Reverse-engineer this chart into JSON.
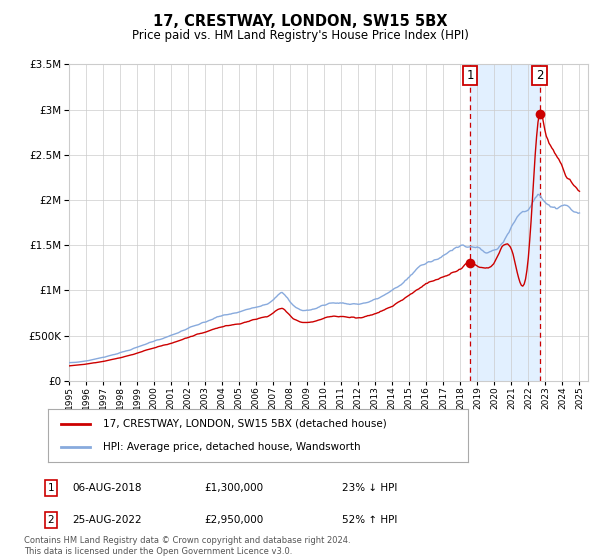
{
  "title": "17, CRESTWAY, LONDON, SW15 5BX",
  "subtitle": "Price paid vs. HM Land Registry's House Price Index (HPI)",
  "legend_label_red": "17, CRESTWAY, LONDON, SW15 5BX (detached house)",
  "legend_label_blue": "HPI: Average price, detached house, Wandsworth",
  "annotation1_label": "1",
  "annotation1_date": "06-AUG-2018",
  "annotation1_price": "£1,300,000",
  "annotation1_hpi": "23% ↓ HPI",
  "annotation1_year": 2018.58,
  "annotation1_value": 1300000,
  "annotation2_label": "2",
  "annotation2_date": "25-AUG-2022",
  "annotation2_price": "£2,950,000",
  "annotation2_hpi": "52% ↑ HPI",
  "annotation2_year": 2022.65,
  "annotation2_value": 2950000,
  "footer": "Contains HM Land Registry data © Crown copyright and database right 2024.\nThis data is licensed under the Open Government Licence v3.0.",
  "ylim": [
    0,
    3500000
  ],
  "yticks": [
    0,
    500000,
    1000000,
    1500000,
    2000000,
    2500000,
    3000000,
    3500000
  ],
  "xlim_start": 1995.0,
  "xlim_end": 2025.5,
  "red_color": "#cc0000",
  "blue_color": "#88aadd",
  "shaded_color": "#ddeeff",
  "grid_color": "#cccccc",
  "bg_color": "#ffffff"
}
